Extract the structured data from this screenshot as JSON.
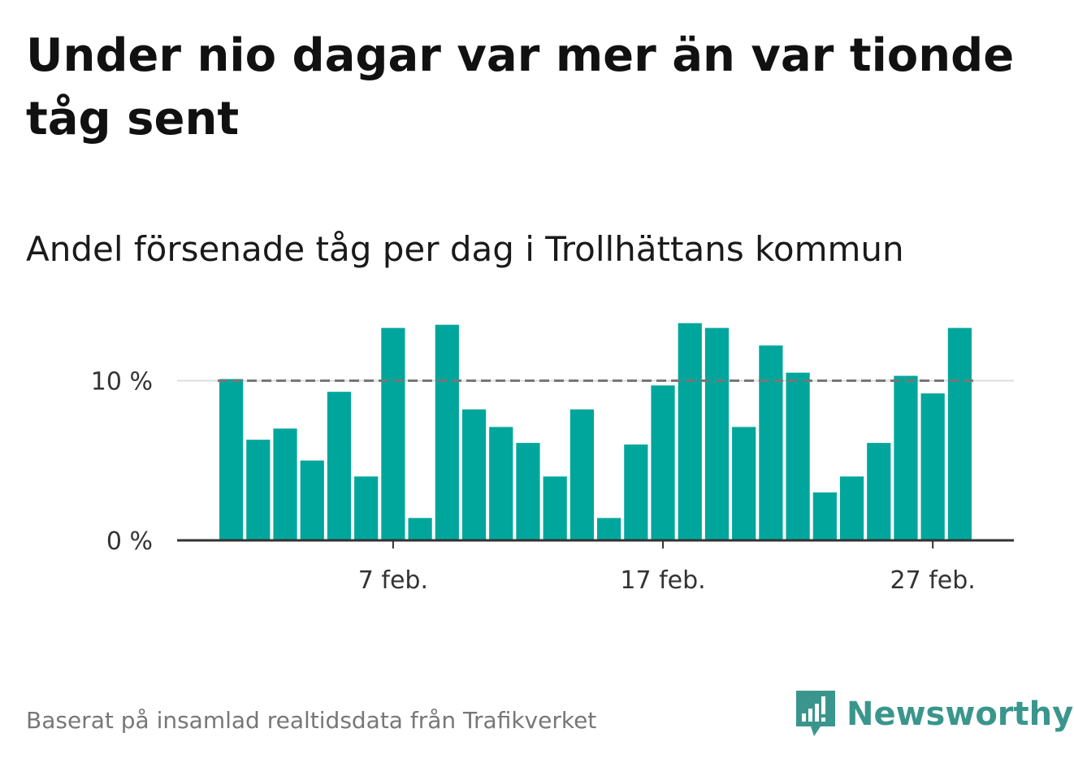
{
  "header": {
    "title": "Under nio dagar var mer än var tionde tåg sent",
    "subtitle": "Andel försenade tåg per dag i Trollhättans kommun"
  },
  "footer": {
    "source": "Baserat på insamlad realtidsdata från Trafikverket",
    "logo_text": "Newsworthy"
  },
  "colors": {
    "bar": "#00a69c",
    "reference_line": "#777777",
    "grid": "#dddddd",
    "axis": "#333333",
    "logo": "#3a968d"
  },
  "icons": {
    "logo": "newsworthy-chart-bubble-icon"
  },
  "chart_data": {
    "type": "bar",
    "title": "Andel försenade tåg per dag i Trollhättans kommun",
    "x_start_day": 1,
    "x": [
      "1 feb.",
      "2 feb.",
      "3 feb.",
      "4 feb.",
      "5 feb.",
      "6 feb.",
      "7 feb.",
      "8 feb.",
      "9 feb.",
      "10 feb.",
      "11 feb.",
      "12 feb.",
      "13 feb.",
      "14 feb.",
      "15 feb.",
      "16 feb.",
      "17 feb.",
      "18 feb.",
      "19 feb.",
      "20 feb.",
      "21 feb.",
      "22 feb.",
      "23 feb.",
      "24 feb.",
      "25 feb.",
      "26 feb.",
      "27 feb.",
      "28 feb."
    ],
    "values": [
      10.1,
      6.3,
      7.0,
      5.0,
      9.3,
      4.0,
      13.3,
      1.4,
      13.5,
      8.2,
      7.1,
      6.1,
      4.0,
      8.2,
      1.4,
      6.0,
      9.7,
      13.6,
      13.3,
      7.1,
      12.2,
      10.5,
      3.0,
      4.0,
      6.1,
      10.3,
      9.2,
      13.3
    ],
    "reference_value": 10,
    "reference_style": "dashed",
    "ylim": [
      0,
      14.5
    ],
    "yticks": [
      0,
      10
    ],
    "ytick_labels": [
      "0 %",
      "10 %"
    ],
    "xticks": [
      "7 feb.",
      "17 feb.",
      "27 feb."
    ],
    "grid": "horizontal",
    "xlabel": "",
    "ylabel": ""
  }
}
